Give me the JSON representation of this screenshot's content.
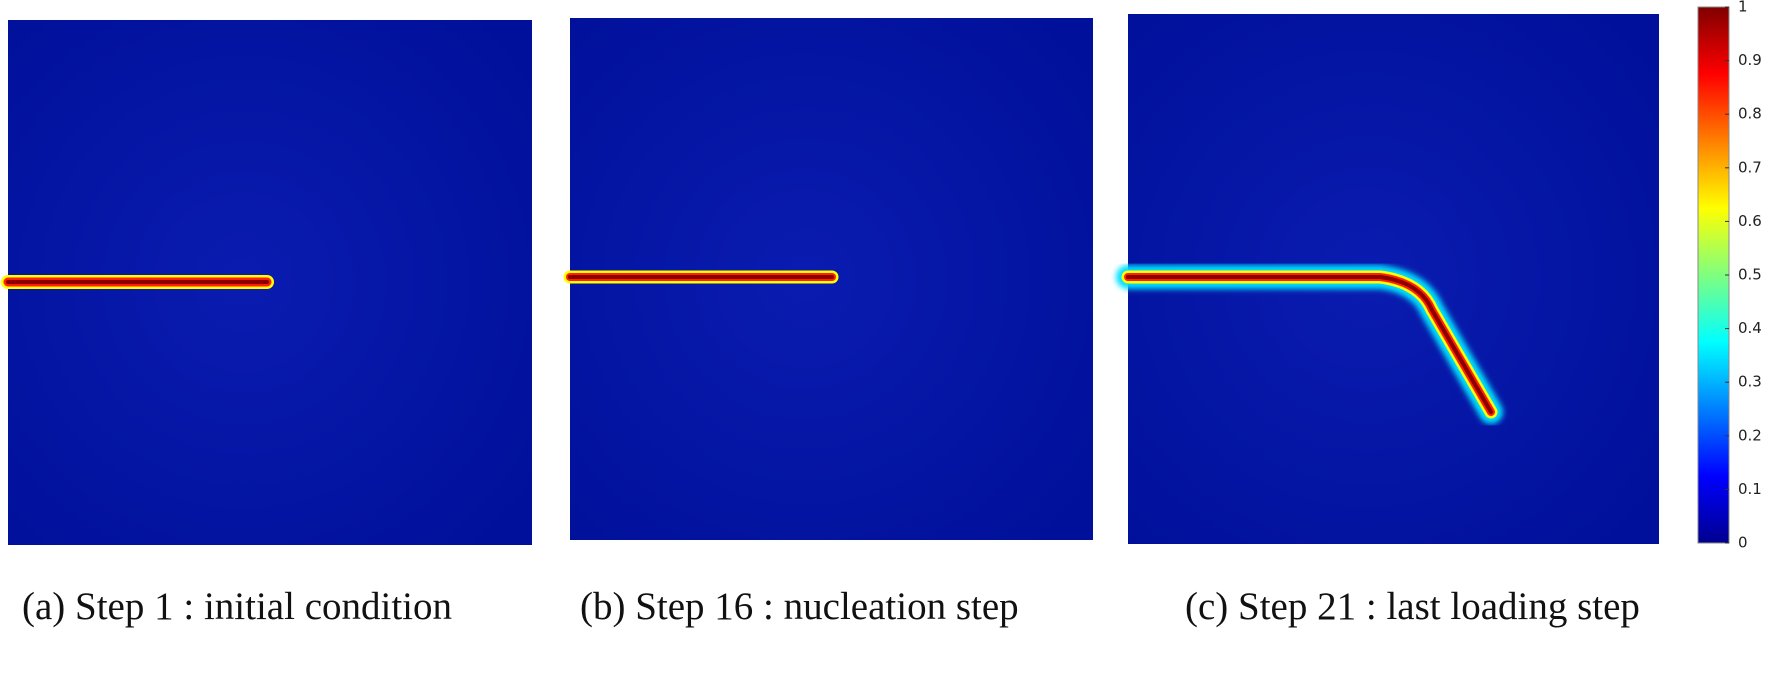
{
  "panels": [
    {
      "caption": "(a) Step 1 : initial condition"
    },
    {
      "caption": "(b) Step 16 : nucleation step"
    },
    {
      "caption": "(c) Step 21 : last loading step"
    }
  ],
  "colorbar": {
    "lim": [
      0,
      1
    ],
    "ticks": [
      0,
      0.1,
      0.2,
      0.3,
      0.4,
      0.5,
      0.6,
      0.7,
      0.8,
      0.9,
      1
    ]
  }
}
